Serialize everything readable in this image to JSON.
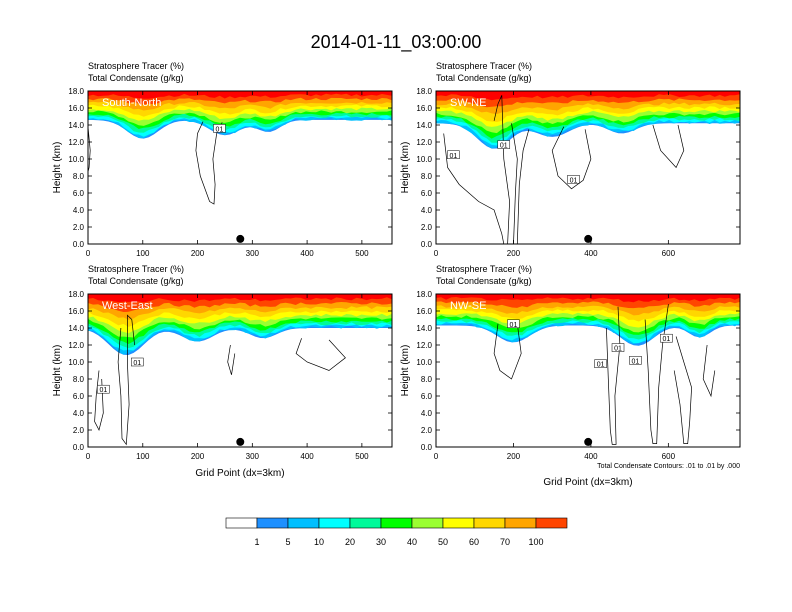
{
  "figure_title": "2014-01-11_03:00:00",
  "chart_data": [
    {
      "type": "contour-cross-section",
      "panel_label": "South-North",
      "field_labels": [
        "Stratosphere Tracer   (%)",
        "Total Condensate   (g/kg)"
      ],
      "ylabel": "Height (km)",
      "xlabel": "",
      "xlim": [
        0,
        555
      ],
      "ylim": [
        0,
        18
      ],
      "x_ticks": [
        0,
        100,
        200,
        300,
        400,
        500
      ],
      "y_ticks": [
        0.0,
        2.0,
        4.0,
        6.0,
        8.0,
        10.0,
        12.0,
        14.0,
        16.0,
        18.0
      ],
      "marker_x": 278,
      "contour_labels": [
        {
          "x": 240,
          "y": 13.6,
          "text": "01"
        }
      ],
      "tracer_base_km": 14.6,
      "tropo_dips": [
        {
          "center": 100,
          "width": 40,
          "depth": 2.2
        },
        {
          "center": 250,
          "width": 40,
          "depth": 1.8
        },
        {
          "center": 330,
          "width": 30,
          "depth": 1.4
        }
      ],
      "cloud_paths": [
        [
          [
            210,
            14.4
          ],
          [
            200,
            13
          ],
          [
            197,
            11
          ],
          [
            205,
            8
          ],
          [
            222,
            5
          ],
          [
            230,
            4.7
          ],
          [
            232,
            7
          ],
          [
            228,
            10
          ],
          [
            235,
            13
          ],
          [
            245,
            14.3
          ]
        ],
        [
          [
            0,
            13.8
          ],
          [
            4,
            11
          ],
          [
            2,
            9
          ],
          [
            0,
            8.5
          ]
        ]
      ]
    },
    {
      "type": "contour-cross-section",
      "panel_label": "SW-NE",
      "field_labels": [
        "Stratosphere Tracer   (%)",
        "Total Condensate   (g/kg)"
      ],
      "ylabel": "Height (km)",
      "xlabel": "",
      "xlim": [
        0,
        785
      ],
      "ylim": [
        0,
        18
      ],
      "x_ticks": [
        0,
        200,
        400,
        600
      ],
      "y_ticks": [
        0.0,
        2.0,
        4.0,
        6.0,
        8.0,
        10.0,
        12.0,
        14.0,
        16.0,
        18.0
      ],
      "marker_x": 393,
      "contour_labels": [
        {
          "x": 45,
          "y": 10.5,
          "text": "01"
        },
        {
          "x": 175,
          "y": 11.7,
          "text": "01"
        },
        {
          "x": 355,
          "y": 7.6,
          "text": "01"
        }
      ],
      "tracer_base_km": 14.2,
      "tropo_dips": [
        {
          "center": 150,
          "width": 60,
          "depth": 3.0
        },
        {
          "center": 300,
          "width": 60,
          "depth": 1.6
        },
        {
          "center": 480,
          "width": 50,
          "depth": 1.2
        }
      ],
      "cloud_paths": [
        [
          [
            20,
            13
          ],
          [
            30,
            9
          ],
          [
            60,
            7
          ],
          [
            110,
            5
          ],
          [
            150,
            4
          ],
          [
            170,
            1.2
          ],
          [
            175,
            0
          ],
          [
            185,
            0
          ],
          [
            190,
            5
          ],
          [
            175,
            10
          ],
          [
            170,
            17.5
          ],
          [
            160,
            16.5
          ],
          [
            150,
            14.5
          ]
        ],
        [
          [
            195,
            14.2
          ],
          [
            210,
            10
          ],
          [
            205,
            6
          ],
          [
            200,
            0
          ],
          [
            210,
            0
          ],
          [
            215,
            7
          ],
          [
            225,
            11
          ],
          [
            240,
            13.5
          ]
        ],
        [
          [
            330,
            13.8
          ],
          [
            300,
            11
          ],
          [
            315,
            8
          ],
          [
            350,
            6.5
          ],
          [
            380,
            7.5
          ],
          [
            400,
            10
          ],
          [
            385,
            13.5
          ]
        ],
        [
          [
            560,
            14
          ],
          [
            580,
            11
          ],
          [
            620,
            9
          ],
          [
            640,
            11
          ],
          [
            625,
            14
          ]
        ]
      ]
    },
    {
      "type": "contour-cross-section",
      "panel_label": "West-East",
      "field_labels": [
        "Stratosphere Tracer   (%)",
        "Total Condensate   (g/kg)"
      ],
      "ylabel": "Height (km)",
      "xlabel": "Grid Point (dx=3km)",
      "xlim": [
        0,
        555
      ],
      "ylim": [
        0,
        18
      ],
      "x_ticks": [
        0,
        100,
        200,
        300,
        400,
        500
      ],
      "y_ticks": [
        0.0,
        2.0,
        4.0,
        6.0,
        8.0,
        10.0,
        12.0,
        14.0,
        16.0,
        18.0
      ],
      "marker_x": 278,
      "contour_labels": [
        {
          "x": 28,
          "y": 6.8,
          "text": "01"
        },
        {
          "x": 90,
          "y": 10.0,
          "text": "01"
        }
      ],
      "tracer_base_km": 14.0,
      "tropo_dips": [
        {
          "center": 70,
          "width": 45,
          "depth": 3.2
        },
        {
          "center": 200,
          "width": 40,
          "depth": 1.6
        },
        {
          "center": 320,
          "width": 35,
          "depth": 1.2
        }
      ],
      "cloud_paths": [
        [
          [
            60,
            14
          ],
          [
            55,
            10
          ],
          [
            60,
            6
          ],
          [
            62,
            1
          ],
          [
            70,
            0.3
          ],
          [
            75,
            5
          ],
          [
            72,
            10
          ],
          [
            72,
            15.5
          ],
          [
            80,
            15
          ],
          [
            85,
            12
          ]
        ],
        [
          [
            20,
            9
          ],
          [
            15,
            6
          ],
          [
            12,
            3
          ],
          [
            20,
            2
          ],
          [
            28,
            4
          ],
          [
            25,
            8
          ]
        ],
        [
          [
            390,
            12.8
          ],
          [
            380,
            11
          ],
          [
            400,
            10
          ],
          [
            440,
            9
          ],
          [
            470,
            10.5
          ],
          [
            440,
            12.6
          ]
        ],
        [
          [
            260,
            12
          ],
          [
            255,
            10
          ],
          [
            262,
            8.5
          ],
          [
            268,
            11
          ]
        ]
      ]
    },
    {
      "type": "contour-cross-section",
      "panel_label": "NW-SE",
      "field_labels": [
        "Stratosphere Tracer   (%)",
        "Total Condensate   (g/kg)"
      ],
      "ylabel": "Height (km)",
      "xlabel": "Grid Point (dx=3km)",
      "xlim": [
        0,
        785
      ],
      "ylim": [
        0,
        18
      ],
      "x_ticks": [
        0,
        200,
        400,
        600
      ],
      "y_ticks": [
        0.0,
        2.0,
        4.0,
        6.0,
        8.0,
        10.0,
        12.0,
        14.0,
        16.0,
        18.0
      ],
      "marker_x": 393,
      "contour_labels": [
        {
          "x": 200,
          "y": 14.5,
          "text": "01"
        },
        {
          "x": 470,
          "y": 11.7,
          "text": "01"
        },
        {
          "x": 425,
          "y": 9.8,
          "text": "01"
        },
        {
          "x": 515,
          "y": 10.2,
          "text": "01"
        },
        {
          "x": 595,
          "y": 12.8,
          "text": "01"
        }
      ],
      "footnote": "Total Condensate Contours: .01 to .01 by .000",
      "tracer_base_km": 14.3,
      "tropo_dips": [
        {
          "center": 200,
          "width": 60,
          "depth": 2.0
        },
        {
          "center": 520,
          "width": 60,
          "depth": 2.4
        },
        {
          "center": 680,
          "width": 40,
          "depth": 1.4
        }
      ],
      "cloud_paths": [
        [
          [
            160,
            14.5
          ],
          [
            150,
            11
          ],
          [
            165,
            9
          ],
          [
            195,
            8
          ],
          [
            220,
            11
          ],
          [
            210,
            14.5
          ]
        ],
        [
          [
            440,
            14
          ],
          [
            445,
            8
          ],
          [
            450,
            2
          ],
          [
            455,
            0.3
          ],
          [
            465,
            0.3
          ],
          [
            462,
            6
          ],
          [
            475,
            12
          ],
          [
            470,
            16.5
          ]
        ],
        [
          [
            540,
            15
          ],
          [
            548,
            9
          ],
          [
            555,
            2
          ],
          [
            560,
            0.4
          ],
          [
            570,
            0.4
          ],
          [
            575,
            7
          ],
          [
            585,
            12
          ],
          [
            600,
            16.8
          ]
        ],
        [
          [
            620,
            13
          ],
          [
            640,
            10
          ],
          [
            660,
            7
          ],
          [
            655,
            3
          ],
          [
            650,
            0.4
          ],
          [
            640,
            0.4
          ],
          [
            630,
            5
          ],
          [
            615,
            9
          ]
        ],
        [
          [
            700,
            12
          ],
          [
            690,
            8
          ],
          [
            710,
            6
          ],
          [
            720,
            9
          ]
        ]
      ]
    }
  ],
  "colorbar": {
    "labels": [
      "1",
      "5",
      "10",
      "20",
      "30",
      "40",
      "50",
      "60",
      "70",
      "100"
    ],
    "colors": [
      "#ffffff",
      "#1e90ff",
      "#00bfff",
      "#00ffff",
      "#00fa9a",
      "#00ff00",
      "#9aff32",
      "#ffff00",
      "#ffd700",
      "#ffa500",
      "#ff4500",
      "#ff0000"
    ]
  }
}
